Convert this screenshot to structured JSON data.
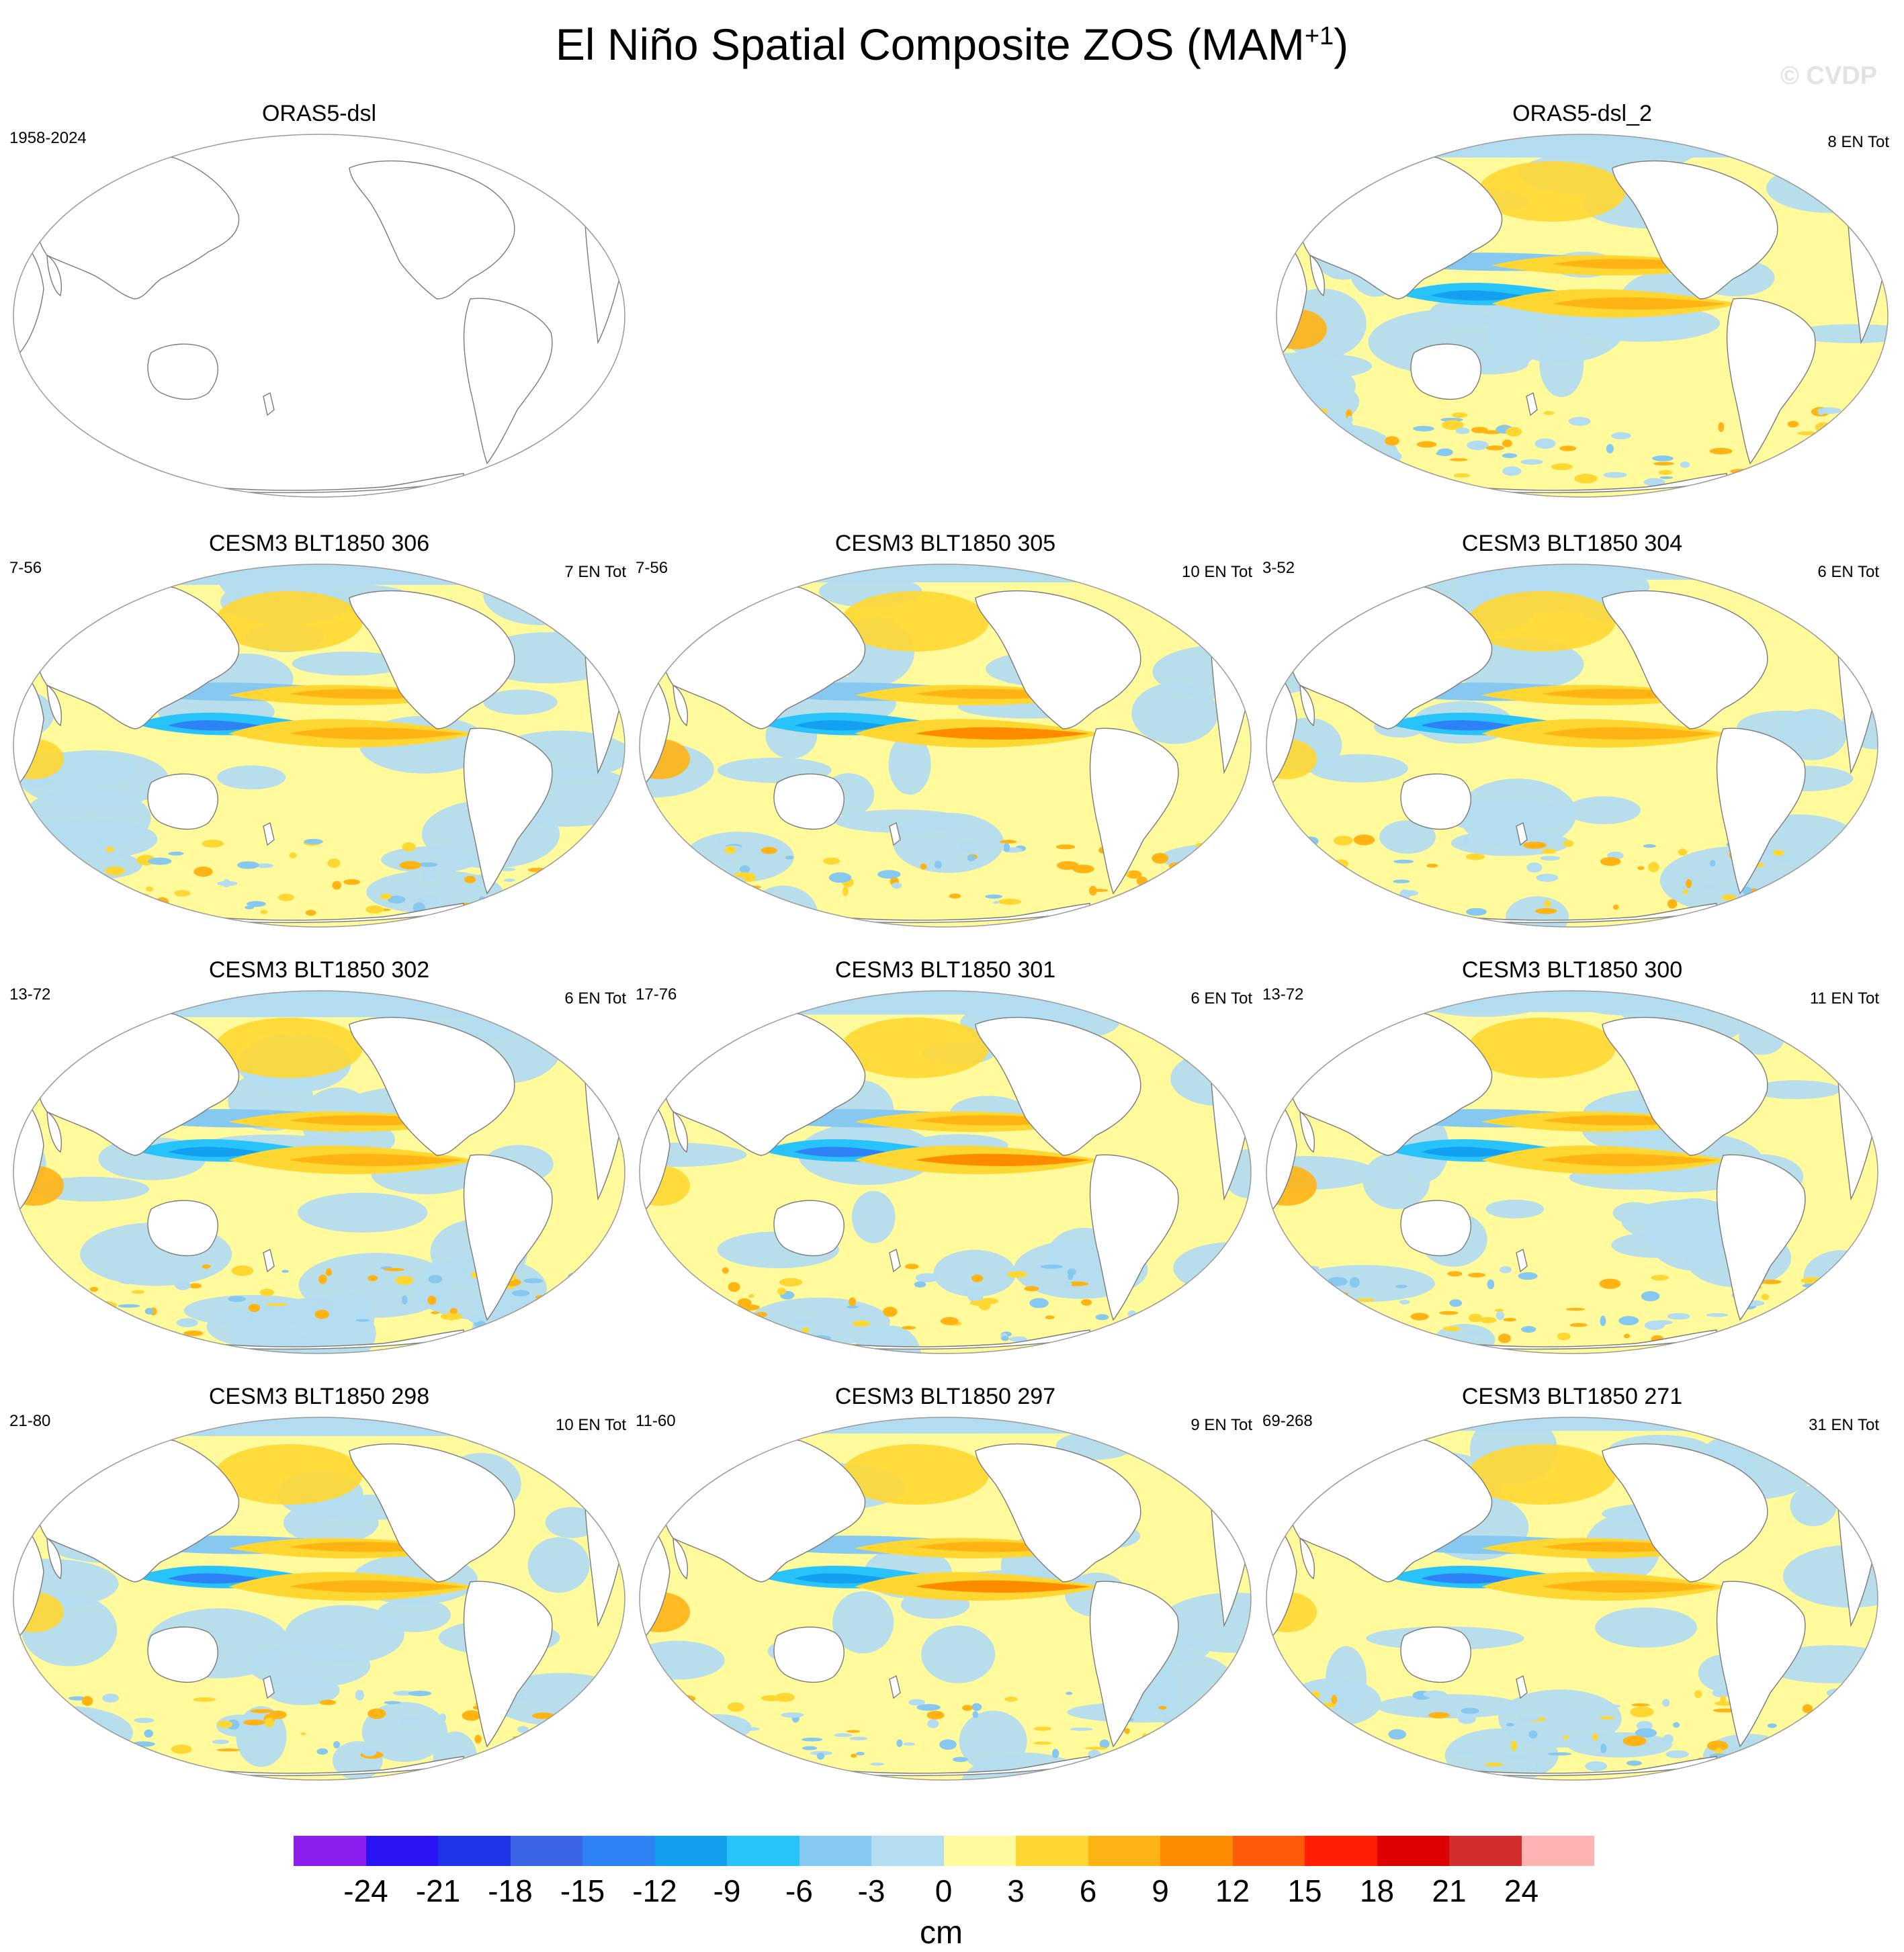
{
  "figure": {
    "title": "El Niño Spatial Composite ZOS (MAM",
    "title_superscript": "+1",
    "title_close": ")",
    "watermark": "© CVDP"
  },
  "panels": [
    {
      "title": "ORAS5-dsl",
      "years": "1958-2024",
      "count": "",
      "filled": false,
      "variant": 0
    },
    {
      "title": "ORAS5-dsl_2",
      "years": "",
      "count": "8 EN Tot",
      "filled": true,
      "variant": 1
    },
    {
      "title": "CESM3 BLT1850 306",
      "years": "7-56",
      "count": "7 EN Tot",
      "filled": true,
      "variant": 2
    },
    {
      "title": "CESM3 BLT1850 305",
      "years": "7-56",
      "count": "10 EN Tot",
      "filled": true,
      "variant": 3
    },
    {
      "title": "CESM3 BLT1850 304",
      "years": "3-52",
      "count": "6 EN Tot",
      "filled": true,
      "variant": 4
    },
    {
      "title": "CESM3 BLT1850 302",
      "years": "13-72",
      "count": "6 EN Tot",
      "filled": true,
      "variant": 5
    },
    {
      "title": "CESM3 BLT1850 301",
      "years": "17-76",
      "count": "6 EN Tot",
      "filled": true,
      "variant": 6
    },
    {
      "title": "CESM3 BLT1850 300",
      "years": "13-72",
      "count": "11 EN Tot",
      "filled": true,
      "variant": 7
    },
    {
      "title": "CESM3 BLT1850 298",
      "years": "21-80",
      "count": "10 EN Tot",
      "filled": true,
      "variant": 8
    },
    {
      "title": "CESM3 BLT1850 297",
      "years": "11-60",
      "count": "9 EN Tot",
      "filled": true,
      "variant": 9
    },
    {
      "title": "CESM3 BLT1850 271",
      "years": "69-268",
      "count": "31 EN Tot",
      "filled": true,
      "variant": 10
    }
  ],
  "colorbar": {
    "units": "cm",
    "colors": [
      "#8c1ef0",
      "#2814f5",
      "#1e32e6",
      "#3c64e6",
      "#2d82f5",
      "#14a0f0",
      "#28c3fa",
      "#87c8f0",
      "#b4dcf0",
      "#fffa9b",
      "#ffd732",
      "#ffb414",
      "#ff8c00",
      "#ff5a0a",
      "#ff1e00",
      "#dc0000",
      "#d22d2d",
      "#ffb4b4"
    ],
    "labels": [
      "-24",
      "-21",
      "-18",
      "-15",
      "-12",
      "-9",
      "-6",
      "-3",
      "0",
      "3",
      "6",
      "9",
      "12",
      "15",
      "18",
      "21",
      "24"
    ]
  }
}
